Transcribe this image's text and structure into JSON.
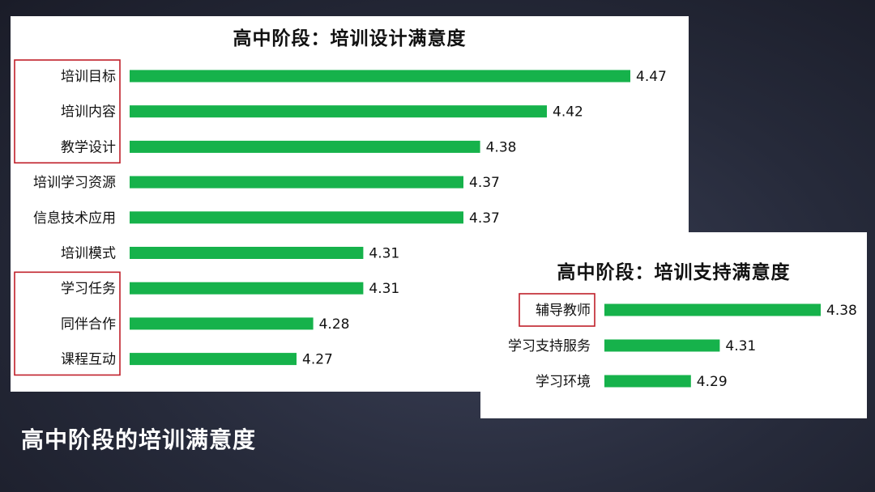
{
  "page_caption": "高中阶段的培训满意度",
  "accent_color": "#16b24b",
  "highlight_color": "#c0202a",
  "chart_data": [
    {
      "type": "bar",
      "orientation": "horizontal",
      "title": "高中阶段：培训设计满意度",
      "categories": [
        "培训目标",
        "培训内容",
        "教学设计",
        "培训学习资源",
        "信息技术应用",
        "培训模式",
        "学习任务",
        "同伴合作",
        "课程互动"
      ],
      "values": [
        4.47,
        4.42,
        4.38,
        4.37,
        4.37,
        4.31,
        4.31,
        4.28,
        4.27
      ],
      "data_labels": [
        "4.47",
        "4.42",
        "4.38",
        "4.37",
        "4.37",
        "4.31",
        "4.31",
        "4.28",
        "4.27"
      ],
      "xlim": [
        4.17,
        4.47
      ],
      "grid": false,
      "highlight_groups": [
        [
          "培训目标",
          "培训内容",
          "教学设计"
        ],
        [
          "学习任务",
          "同伴合作",
          "课程互动"
        ]
      ]
    },
    {
      "type": "bar",
      "orientation": "horizontal",
      "title": "高中阶段：培训支持满意度",
      "categories": [
        "辅导教师",
        "学习支持服务",
        "学习环境"
      ],
      "values": [
        4.38,
        4.31,
        4.29
      ],
      "data_labels": [
        "4.38",
        "4.31",
        "4.29"
      ],
      "xlim": [
        4.23,
        4.38
      ],
      "grid": false,
      "highlight_groups": [
        [
          "辅导教师"
        ]
      ]
    }
  ]
}
